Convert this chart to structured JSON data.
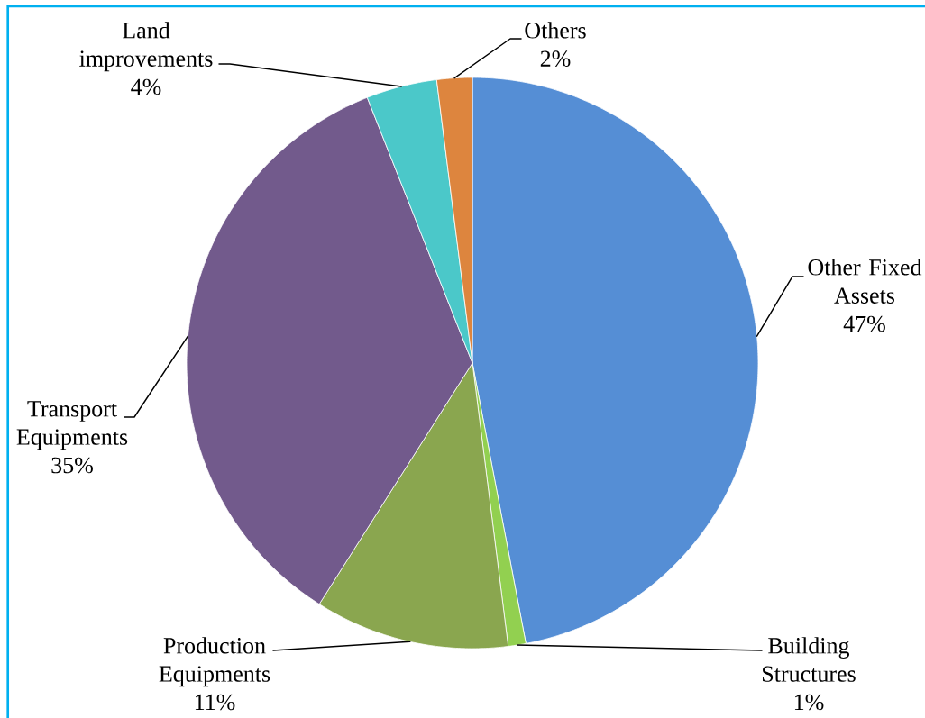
{
  "chart_data": {
    "type": "pie",
    "categories": [
      "Other Fixed Assets",
      "Building Structures",
      "Production Equipments",
      "Transport Equipments",
      "Land improvements",
      "Others"
    ],
    "values": [
      47,
      1,
      11,
      35,
      4,
      2
    ],
    "colors": [
      "#558ed5",
      "#92d050",
      "#8aa64f",
      "#725a8c",
      "#4bc8c9",
      "#dd853e"
    ],
    "value_labels": [
      "47%",
      "1%",
      "11%",
      "35%",
      "4%",
      "2%"
    ]
  }
}
